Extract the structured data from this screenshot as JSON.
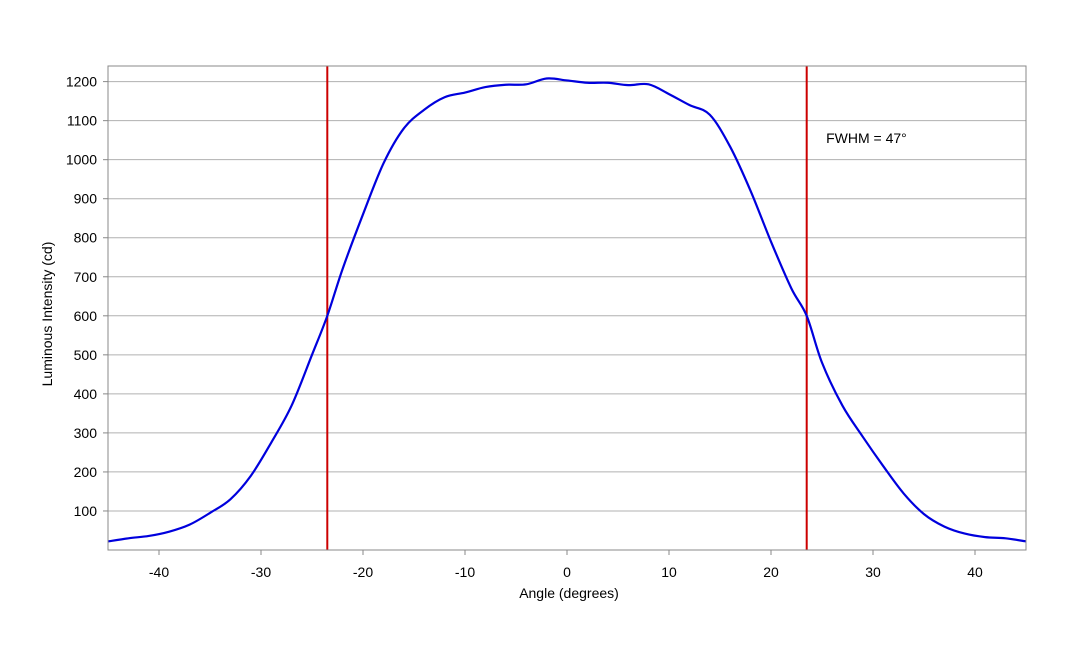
{
  "chart_data": {
    "type": "line",
    "title": "",
    "xlabel": "Angle (degrees)",
    "ylabel": "Luminous Intensity (cd)",
    "xlim": [
      -45,
      45
    ],
    "ylim": [
      0,
      1240
    ],
    "x_ticks": [
      -40,
      -30,
      -20,
      -10,
      0,
      10,
      20,
      30,
      40
    ],
    "y_ticks": [
      100,
      200,
      300,
      400,
      500,
      600,
      700,
      800,
      900,
      1000,
      1100,
      1200
    ],
    "grid": "horizontal",
    "legend": "none",
    "series": [
      {
        "color": "#0000dd",
        "x": [
          -45,
          -43,
          -41,
          -39,
          -37,
          -35,
          -33,
          -31,
          -29,
          -27,
          -25,
          -23.5,
          -22,
          -20,
          -18,
          -16,
          -14,
          -12,
          -10,
          -8,
          -6,
          -4,
          -2,
          0,
          2,
          4,
          6,
          8,
          10,
          12,
          14,
          16,
          18,
          20,
          22,
          23.5,
          25,
          27,
          29,
          31,
          33,
          35,
          37,
          39,
          41,
          43,
          45
        ],
        "y": [
          22,
          30,
          36,
          47,
          65,
          95,
          130,
          190,
          275,
          370,
          500,
          600,
          720,
          860,
          990,
          1080,
          1128,
          1160,
          1172,
          1186,
          1192,
          1193,
          1208,
          1203,
          1197,
          1197,
          1191,
          1193,
          1168,
          1140,
          1115,
          1033,
          920,
          790,
          670,
          600,
          480,
          370,
          290,
          215,
          145,
          92,
          60,
          42,
          33,
          30,
          22
        ]
      }
    ],
    "vlines": [
      {
        "x": -23.5,
        "color": "#cc0000"
      },
      {
        "x": 23.5,
        "color": "#cc0000"
      }
    ],
    "annotations": [
      {
        "text": "FWHM = 47°",
        "x": 25.4,
        "y": 1043
      }
    ],
    "colors": {
      "grid": "#b0b0b0",
      "axis": "#888888",
      "curve": "#0000dd",
      "fwhm_lines": "#cc0000"
    }
  }
}
